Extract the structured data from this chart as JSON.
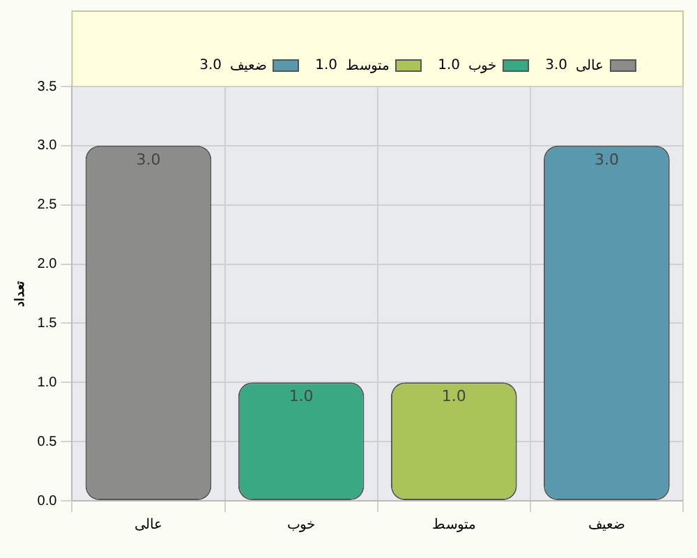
{
  "chart_data": {
    "type": "bar",
    "ylabel": "تعداد",
    "categories": [
      "عالی",
      "خوب",
      "متوسط",
      "ضعیف"
    ],
    "series": [
      {
        "name": "عالی",
        "color": "#8c8c8a",
        "values": [
          3,
          null,
          null,
          null
        ],
        "value_labels": [
          "3.0",
          null,
          null,
          null
        ]
      },
      {
        "name": "خوب",
        "color": "#3aa882",
        "values": [
          null,
          1,
          null,
          null
        ],
        "value_labels": [
          null,
          "1.0",
          null,
          null
        ]
      },
      {
        "name": "متوسط",
        "color": "#aac45a",
        "values": [
          null,
          null,
          1,
          null
        ],
        "value_labels": [
          null,
          null,
          "1.0",
          null
        ]
      },
      {
        "name": "ضعیف",
        "color": "#5a98ae",
        "values": [
          null,
          null,
          null,
          3
        ],
        "value_labels": [
          null,
          null,
          null,
          "3.0"
        ]
      }
    ],
    "ylim": [
      0,
      3.5
    ],
    "yticks": [
      {
        "value": 0,
        "label": "0.0"
      },
      {
        "value": 0.5,
        "label": "0.5"
      },
      {
        "value": 1,
        "label": "1.0"
      },
      {
        "value": 1.5,
        "label": "1.5"
      },
      {
        "value": 2,
        "label": "2.0"
      },
      {
        "value": 2.5,
        "label": "2.5"
      },
      {
        "value": 3,
        "label": "3.0"
      },
      {
        "value": 3.5,
        "label": "3.5"
      }
    ],
    "grid": true,
    "legend": "top"
  }
}
